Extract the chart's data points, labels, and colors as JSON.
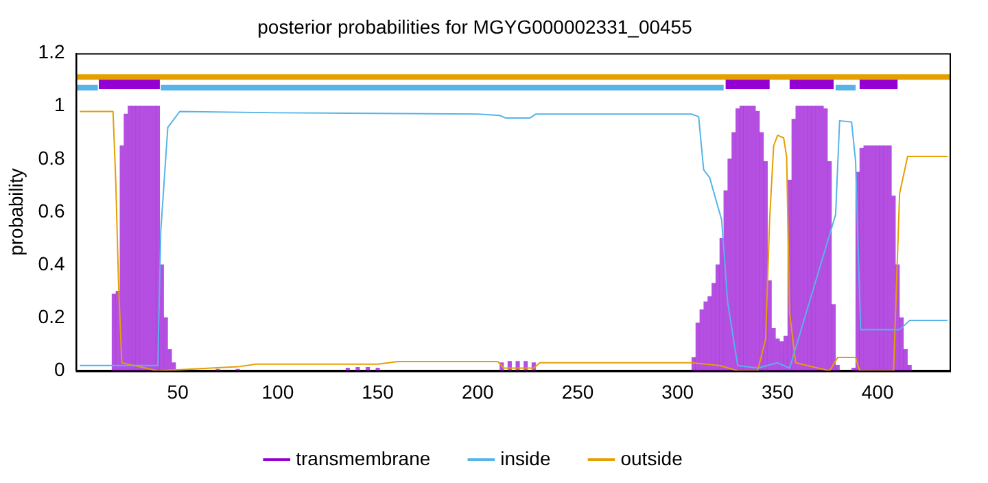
{
  "chart_data": {
    "type": "line",
    "title": "posterior probabilities for MGYG000002331_00455",
    "ylabel": "probability",
    "xlim": [
      -1,
      436
    ],
    "xticks": [
      50,
      100,
      150,
      200,
      250,
      300,
      350,
      400
    ],
    "ylim": [
      0,
      1.2
    ],
    "yticks": [
      0,
      0.2,
      0.4,
      0.6,
      0.8,
      1,
      1.2
    ],
    "grid": false,
    "legend": "bottom",
    "marker": "none",
    "line_style": "solid",
    "series": [
      {
        "name": "transmembrane",
        "type": "bar",
        "color": "#9400d3",
        "x": [
          18,
          20,
          22,
          24,
          26,
          28,
          30,
          32,
          34,
          36,
          38,
          40,
          42,
          44,
          46,
          48,
          70,
          80,
          135,
          140,
          145,
          150,
          212,
          216,
          220,
          224,
          228,
          308,
          310,
          312,
          314,
          316,
          318,
          320,
          322,
          324,
          326,
          328,
          330,
          332,
          334,
          336,
          338,
          340,
          342,
          344,
          346,
          348,
          350,
          352,
          354,
          356,
          358,
          360,
          362,
          364,
          366,
          368,
          370,
          372,
          374,
          376,
          378,
          380,
          388,
          390,
          392,
          394,
          396,
          398,
          400,
          402,
          404,
          406,
          408,
          410,
          412,
          414,
          416
        ],
        "values": [
          0.29,
          0.3,
          0.85,
          0.97,
          1,
          1,
          1,
          1,
          1,
          1,
          1,
          1,
          0.4,
          0.2,
          0.08,
          0.03,
          0.005,
          0.005,
          0.01,
          0.012,
          0.012,
          0.01,
          0.03,
          0.035,
          0.035,
          0.035,
          0.03,
          0.05,
          0.18,
          0.23,
          0.26,
          0.28,
          0.33,
          0.4,
          0.5,
          0.68,
          0.8,
          0.9,
          0.99,
          1,
          1,
          1,
          1,
          0.98,
          0.9,
          0.79,
          0.34,
          0.16,
          0.12,
          0.11,
          0.13,
          0.72,
          0.95,
          1,
          1,
          1,
          1,
          1,
          1,
          1,
          0.99,
          0.79,
          0.25,
          0.02,
          0.01,
          0.75,
          0.84,
          0.85,
          0.85,
          0.85,
          0.85,
          0.85,
          0.85,
          0.85,
          0.66,
          0.4,
          0.2,
          0.08,
          0.02
        ]
      },
      {
        "name": "inside",
        "color": "#56b4e9",
        "x": [
          1,
          40,
          41.5,
          45,
          51,
          100,
          200,
          211,
          214,
          226,
          229,
          300,
          307,
          310.5,
          313,
          316,
          322,
          325,
          330,
          340,
          350,
          356,
          379,
          381,
          387,
          389,
          391.5,
          411,
          416,
          435
        ],
        "values": [
          0.02,
          0.02,
          0.53,
          0.92,
          0.98,
          0.975,
          0.97,
          0.965,
          0.955,
          0.955,
          0.97,
          0.97,
          0.97,
          0.96,
          0.76,
          0.73,
          0.57,
          0.26,
          0.02,
          0.01,
          0.03,
          0.01,
          0.59,
          0.945,
          0.94,
          0.79,
          0.155,
          0.155,
          0.19,
          0.19
        ]
      },
      {
        "name": "outside",
        "color": "#e69f00",
        "x": [
          1,
          17.6,
          19,
          20.4,
          22,
          40,
          80,
          89,
          150,
          160,
          210,
          213,
          228,
          231,
          307,
          321,
          330,
          340,
          344,
          346,
          348,
          350,
          353,
          354.5,
          356,
          359,
          376,
          380,
          389,
          391,
          408,
          411,
          415,
          435
        ],
        "values": [
          0.98,
          0.98,
          0.71,
          0.32,
          0.03,
          0,
          0.015,
          0.025,
          0.025,
          0.035,
          0.035,
          0.01,
          0.01,
          0.03,
          0.03,
          0.02,
          0,
          0,
          0.12,
          0.57,
          0.85,
          0.89,
          0.88,
          0.81,
          0.22,
          0.03,
          0,
          0.05,
          0.05,
          0,
          0,
          0.67,
          0.81,
          0.81
        ]
      },
      {
        "type": "line",
        "color": "#e69f00",
        "x": [
          -1,
          436
        ],
        "values": [
          1.11,
          1.11
        ]
      },
      {
        "type": "line",
        "color": "#56b4e9",
        "x": [
          -1,
          10,
          10.5,
          41.5,
          323,
          323.5,
          379,
          389
        ],
        "values": [
          1.07,
          1.07,
          null,
          1.07,
          1.07,
          null,
          1.07,
          1.07
        ]
      },
      {
        "type": "line",
        "color": "#9400d3",
        "x": [
          10.5,
          41,
          41.5,
          324,
          346,
          346.5,
          356,
          378,
          378.5,
          391,
          410
        ],
        "values": [
          1.09,
          1.09,
          null,
          1.09,
          1.09,
          null,
          1.09,
          1.09,
          null,
          1.09,
          1.09
        ]
      }
    ]
  }
}
